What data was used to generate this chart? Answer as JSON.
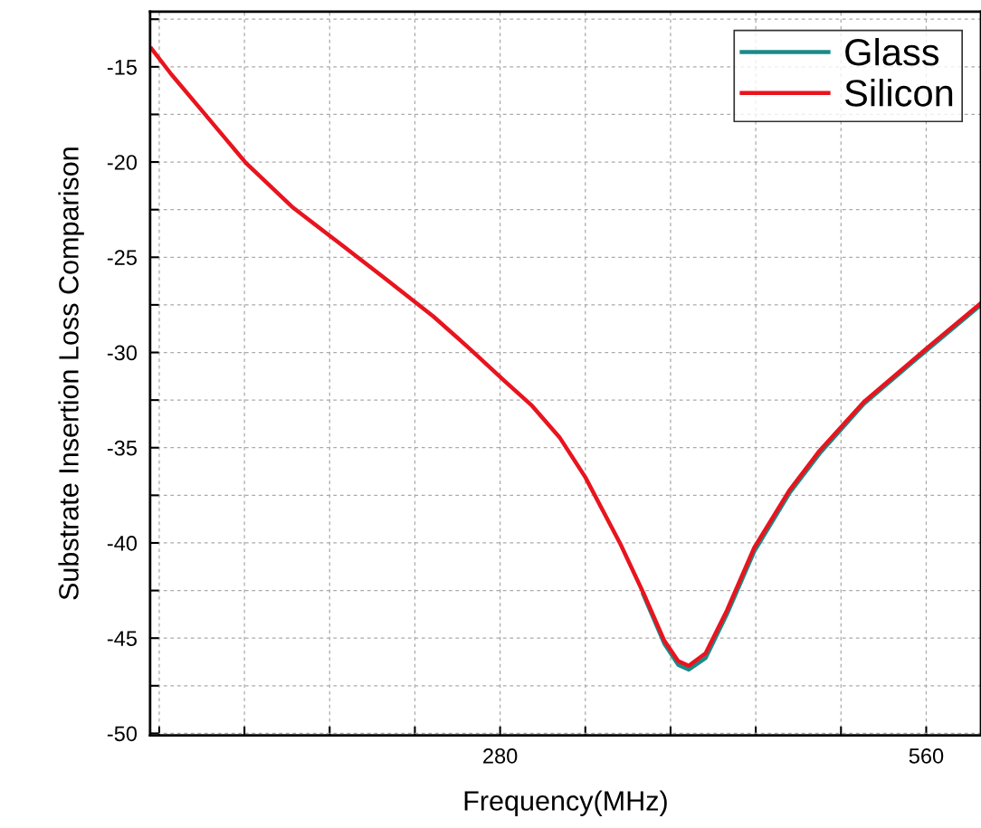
{
  "chart_data": {
    "type": "line",
    "xlabel": "Frequency(MHz)",
    "ylabel": "Substrate Insertion Loss Comparison",
    "xlim": [
      50,
      596
    ],
    "ylim": [
      -50.1,
      -12.1
    ],
    "xticks": [
      {
        "value": 56,
        "label": null
      },
      {
        "value": 112,
        "label": null
      },
      {
        "value": 168,
        "label": null
      },
      {
        "value": 224,
        "label": null
      },
      280,
      {
        "value": 336,
        "label": null
      },
      {
        "value": 392,
        "label": null
      },
      {
        "value": 448,
        "label": null
      },
      {
        "value": 504,
        "label": null
      },
      560
    ],
    "yticks": [
      -50,
      {
        "value": -47.5,
        "label": null
      },
      -45,
      {
        "value": -42.5,
        "label": null
      },
      -40,
      {
        "value": -37.5,
        "label": null
      },
      -35,
      {
        "value": -32.5,
        "label": null
      },
      -30,
      {
        "value": -27.5,
        "label": null
      },
      -25,
      {
        "value": -22.5,
        "label": null
      },
      -20,
      {
        "value": -17.5,
        "label": null
      },
      -15,
      {
        "value": -12.5,
        "label": null
      }
    ],
    "grid": true,
    "legend": "top right",
    "line_style": "solid",
    "marker": "none",
    "x": [
      51,
      64,
      83,
      113,
      144,
      175,
      205,
      236,
      260,
      283,
      301,
      319,
      336,
      359,
      374,
      388,
      397,
      404,
      415,
      429,
      447,
      470,
      490,
      519,
      563,
      596
    ],
    "series": [
      {
        "name": "Glass",
        "color": "#1a8a8a",
        "values": [
          null,
          null,
          null,
          null,
          null,
          null,
          null,
          null,
          null,
          null,
          null,
          null,
          null,
          null,
          -42.7,
          -45.3,
          -46.4,
          -46.65,
          -46.05,
          -43.75,
          -40.45,
          -37.4,
          -35.3,
          -32.7,
          -29.7,
          -27.5
        ]
      },
      {
        "name": "Silicon",
        "color": "#e8141e",
        "values": [
          -14.05,
          -15.4,
          -17.2,
          -20.05,
          -22.4,
          -24.3,
          -26.15,
          -28.1,
          -29.8,
          -31.5,
          -32.8,
          -34.45,
          -36.55,
          -40.05,
          -42.6,
          -45.15,
          -46.2,
          -46.45,
          -45.8,
          -43.55,
          -40.25,
          -37.25,
          -35.15,
          -32.6,
          -29.6,
          -27.4
        ]
      }
    ]
  }
}
